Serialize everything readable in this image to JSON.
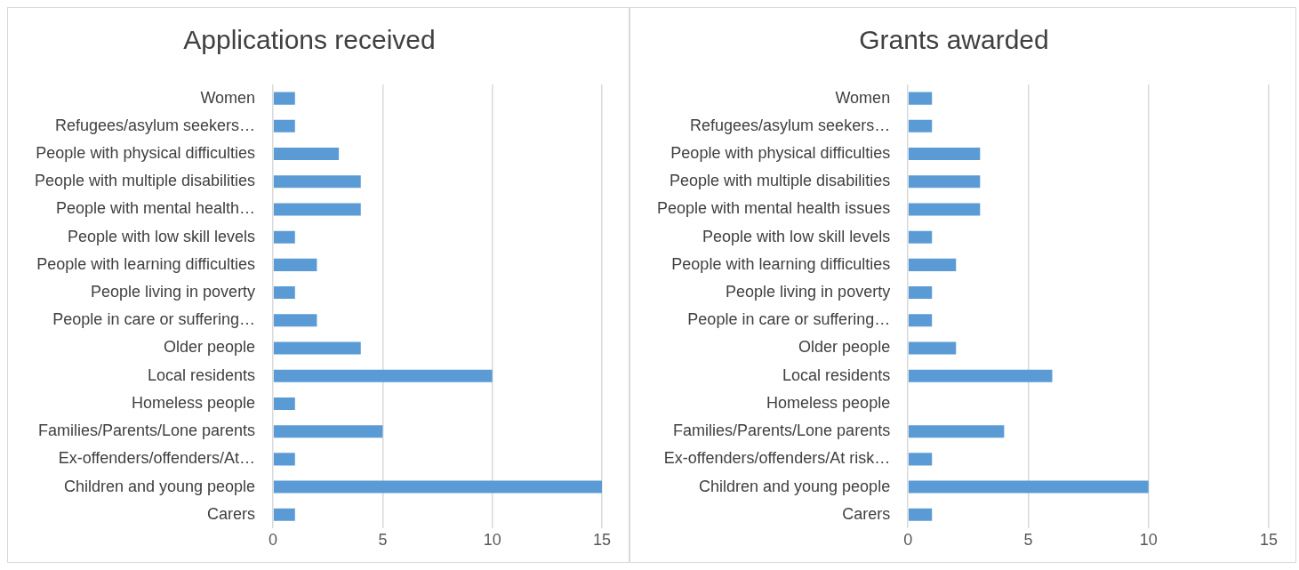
{
  "chart_data": [
    {
      "type": "bar",
      "orientation": "horizontal",
      "title": "Applications received",
      "categories": [
        "Women",
        "Refugees/asylum seekers…",
        "People with physical difficulties",
        "People with multiple disabilities",
        "People with mental health…",
        "People with low skill levels",
        "People with learning difficulties",
        "People living in poverty",
        "People in care or suffering…",
        "Older people",
        "Local residents",
        "Homeless people",
        "Families/Parents/Lone parents",
        "Ex-offenders/offenders/At…",
        "Children and young people",
        "Carers"
      ],
      "values": [
        1,
        1,
        3,
        4,
        4,
        1,
        2,
        1,
        2,
        4,
        10,
        1,
        5,
        1,
        15,
        1
      ],
      "color": "#5b9bd5",
      "xlim": [
        0,
        15
      ],
      "xticks": [
        0,
        5,
        10,
        15
      ],
      "grid": "x",
      "legend": false
    },
    {
      "type": "bar",
      "orientation": "horizontal",
      "title": "Grants awarded",
      "categories": [
        "Women",
        "Refugees/asylum seekers…",
        "People with physical difficulties",
        "People with multiple disabilities",
        "People with mental health issues",
        "People with low skill levels",
        "People with learning difficulties",
        "People living in poverty",
        "People in care or suffering…",
        "Older people",
        "Local residents",
        "Homeless people",
        "Families/Parents/Lone parents",
        "Ex-offenders/offenders/At risk…",
        "Children and young people",
        "Carers"
      ],
      "values": [
        1,
        1,
        3,
        3,
        3,
        1,
        2,
        1,
        1,
        2,
        6,
        0,
        4,
        1,
        10,
        1
      ],
      "color": "#5b9bd5",
      "xlim": [
        0,
        15
      ],
      "xticks": [
        0,
        5,
        10,
        15
      ],
      "grid": "x",
      "legend": false
    }
  ]
}
